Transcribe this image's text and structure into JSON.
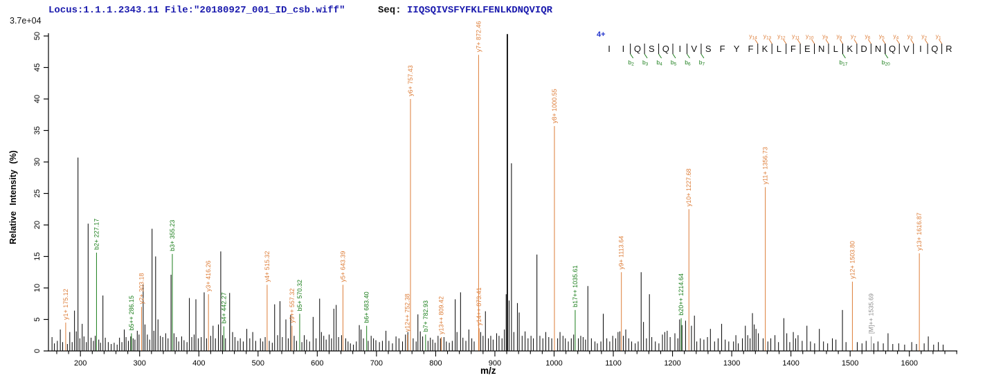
{
  "header": {
    "locus_file": "Locus:1.1.1.2343.11 File:\"20180927_001_ID_csb.wiff\"",
    "seq_label": "Seq: ",
    "sequence": "IIQSQIVSFYFKLFENLKDNQVIQR"
  },
  "axes": {
    "y": {
      "title": "Relative  Intensity (%)",
      "scale_note": "3.7e+04",
      "tick_values": [
        0,
        5,
        10,
        15,
        20,
        25,
        30,
        35,
        40,
        45,
        50
      ],
      "max": 50
    },
    "x": {
      "title": "m/z",
      "min": 146,
      "max": 1681,
      "major_ticks": [
        200,
        300,
        400,
        500,
        600,
        700,
        800,
        900,
        1000,
        1100,
        1200,
        1300,
        1400,
        1500,
        1600
      ],
      "minor_step": 20
    }
  },
  "colors": {
    "y_ion": "#dd7d38",
    "b_ion": "#1b7e1b",
    "precursor": "#909090",
    "peak": "#000000",
    "header_text": "#1a1aad",
    "charge": "#2233cc",
    "axis": "#000000"
  },
  "sequence_panel": {
    "charge_label": "4+",
    "residues": [
      "I",
      "I",
      "Q",
      "S",
      "Q",
      "I",
      "V",
      "S",
      "F",
      "Y",
      "F",
      "K",
      "L",
      "F",
      "E",
      "N",
      "L",
      "K",
      "D",
      "N",
      "Q",
      "V",
      "I",
      "Q",
      "R"
    ],
    "y_ion_marks": [
      14,
      13,
      12,
      11,
      10,
      9,
      8,
      7,
      6,
      5,
      4,
      3,
      2,
      1
    ],
    "b_ion_marks": [
      2,
      3,
      4,
      5,
      6,
      7,
      17,
      20
    ]
  },
  "chart_data": {
    "type": "bar",
    "title": "MS/MS fragment spectrum",
    "xlabel": "m/z",
    "ylabel": "Relative Intensity (%)",
    "xlim": [
      146,
      1681
    ],
    "ylim": [
      0,
      50
    ],
    "grid": false,
    "labeled_peaks": [
      {
        "label": "y1+ 175.12",
        "mz": 175.12,
        "intensity": 4.5,
        "type": "y"
      },
      {
        "label": "b2+ 227.17",
        "mz": 227.17,
        "intensity": 15.6,
        "type": "b"
      },
      {
        "label": "b5++ 286.15",
        "mz": 286.15,
        "intensity": 2.8,
        "type": "b"
      },
      {
        "label": "y2+ 303.18",
        "mz": 303.18,
        "intensity": 7.0,
        "type": "y"
      },
      {
        "label": "b3+ 355.23",
        "mz": 355.23,
        "intensity": 15.4,
        "type": "b"
      },
      {
        "label": "y3+ 416.26",
        "mz": 416.26,
        "intensity": 9.0,
        "type": "y"
      },
      {
        "label": "b4+ 442.27",
        "mz": 442.27,
        "intensity": 3.9,
        "type": "b"
      },
      {
        "label": "y4+ 515.32",
        "mz": 515.32,
        "intensity": 10.5,
        "type": "y"
      },
      {
        "label": "y9++ 557.32",
        "mz": 557.32,
        "intensity": 4.0,
        "type": "y"
      },
      {
        "label": "b5+ 570.32",
        "mz": 570.32,
        "intensity": 5.9,
        "type": "b"
      },
      {
        "label": "y5+ 643.39",
        "mz": 643.39,
        "intensity": 10.5,
        "type": "y"
      },
      {
        "label": "b6+ 683.40",
        "mz": 683.4,
        "intensity": 4.0,
        "type": "b"
      },
      {
        "label": "y12++ 752.38",
        "mz": 752.38,
        "intensity": 2.6,
        "type": "y"
      },
      {
        "label": "y6+ 757.43",
        "mz": 757.43,
        "intensity": 40.0,
        "type": "y"
      },
      {
        "label": "b7+ 782.93",
        "mz": 782.93,
        "intensity": 2.6,
        "type": "b"
      },
      {
        "label": "y13++ 809.42",
        "mz": 809.42,
        "intensity": 2.2,
        "type": "y"
      },
      {
        "label": "y7+ 872.46",
        "mz": 872.46,
        "intensity": 47.0,
        "type": "y"
      },
      {
        "label": "y14++ 873.41",
        "mz": 873.41,
        "intensity": 3.6,
        "type": "y"
      },
      {
        "label": "y8+ 1000.55",
        "mz": 1000.55,
        "intensity": 35.7,
        "type": "y"
      },
      {
        "label": "b17++ 1035.61",
        "mz": 1035.61,
        "intensity": 6.5,
        "type": "b"
      },
      {
        "label": "y9+ 1113.64",
        "mz": 1113.64,
        "intensity": 12.5,
        "type": "y"
      },
      {
        "label": "b20++ 1214.64",
        "mz": 1214.64,
        "intensity": 5.2,
        "type": "b"
      },
      {
        "label": "y10+ 1227.68",
        "mz": 1227.68,
        "intensity": 22.5,
        "type": "y"
      },
      {
        "label": "y11+ 1356.73",
        "mz": 1356.73,
        "intensity": 26.0,
        "type": "y"
      },
      {
        "label": "y12+ 1503.80",
        "mz": 1503.8,
        "intensity": 11.0,
        "type": "y"
      },
      {
        "label": "[M]++ 1535.69",
        "mz": 1535.69,
        "intensity": 2.3,
        "type": "M"
      },
      {
        "label": "y13+ 1616.87",
        "mz": 1616.87,
        "intensity": 15.5,
        "type": "y"
      }
    ],
    "unlabeled_peaks": [
      [
        152,
        2.2
      ],
      [
        156,
        1.2
      ],
      [
        161,
        1.6
      ],
      [
        166,
        3.4
      ],
      [
        170,
        1.4
      ],
      [
        178,
        1.1
      ],
      [
        182,
        3.0
      ],
      [
        186,
        1.4
      ],
      [
        190,
        6.4
      ],
      [
        193,
        3.1
      ],
      [
        195.9,
        30.7
      ],
      [
        199,
        2.0
      ],
      [
        203,
        4.3
      ],
      [
        206,
        2.3
      ],
      [
        210,
        1.4
      ],
      [
        213,
        20.2
      ],
      [
        218,
        2.1
      ],
      [
        222,
        1.6
      ],
      [
        225,
        2.4
      ],
      [
        231,
        1.8
      ],
      [
        234,
        1.3
      ],
      [
        238,
        8.8
      ],
      [
        242,
        2.1
      ],
      [
        247,
        1.4
      ],
      [
        252,
        1.1
      ],
      [
        257,
        1.3
      ],
      [
        262,
        1.0
      ],
      [
        266,
        2.1
      ],
      [
        270,
        1.4
      ],
      [
        274,
        3.4
      ],
      [
        277,
        2.2
      ],
      [
        281,
        1.6
      ],
      [
        285,
        2.3
      ],
      [
        289,
        2.0
      ],
      [
        292,
        1.8
      ],
      [
        296,
        3.2
      ],
      [
        299,
        2.6
      ],
      [
        306,
        10.5
      ],
      [
        309,
        4.2
      ],
      [
        313,
        2.6
      ],
      [
        317,
        1.8
      ],
      [
        321,
        19.4
      ],
      [
        324,
        3.2
      ],
      [
        327,
        15.0
      ],
      [
        331,
        5.0
      ],
      [
        335,
        2.4
      ],
      [
        339,
        2.2
      ],
      [
        344,
        2.8
      ],
      [
        348,
        2.0
      ],
      [
        353,
        12.1
      ],
      [
        358,
        2.8
      ],
      [
        362,
        2.2
      ],
      [
        366,
        1.5
      ],
      [
        371,
        2.3
      ],
      [
        375,
        1.7
      ],
      [
        380,
        1.4
      ],
      [
        384,
        8.4
      ],
      [
        388,
        2.2
      ],
      [
        392,
        2.6
      ],
      [
        395,
        8.2
      ],
      [
        399,
        2.0
      ],
      [
        404,
        2.2
      ],
      [
        409,
        9.3
      ],
      [
        413,
        2.0
      ],
      [
        420,
        2.4
      ],
      [
        424,
        4.0
      ],
      [
        428,
        2.0
      ],
      [
        433,
        4.2
      ],
      [
        437,
        15.8
      ],
      [
        440,
        2.5
      ],
      [
        445,
        2.0
      ],
      [
        452,
        9.2
      ],
      [
        457,
        3.0
      ],
      [
        461,
        2.2
      ],
      [
        466,
        1.6
      ],
      [
        470,
        2.0
      ],
      [
        475,
        1.5
      ],
      [
        481,
        3.5
      ],
      [
        486,
        2.0
      ],
      [
        491,
        3.0
      ],
      [
        496,
        1.6
      ],
      [
        504,
        2.0
      ],
      [
        508,
        1.5
      ],
      [
        512,
        2.2
      ],
      [
        519,
        1.6
      ],
      [
        524,
        1.3
      ],
      [
        528,
        7.4
      ],
      [
        533,
        2.5
      ],
      [
        537,
        7.9
      ],
      [
        541,
        2.2
      ],
      [
        547,
        5.0
      ],
      [
        551,
        2.0
      ],
      [
        555,
        5.7
      ],
      [
        561,
        2.4
      ],
      [
        565,
        1.6
      ],
      [
        574,
        1.4
      ],
      [
        578,
        2.5
      ],
      [
        582,
        1.8
      ],
      [
        587,
        1.5
      ],
      [
        593,
        5.4
      ],
      [
        598,
        2.0
      ],
      [
        604,
        8.3
      ],
      [
        607,
        3.0
      ],
      [
        611,
        2.4
      ],
      [
        615,
        1.8
      ],
      [
        620,
        2.6
      ],
      [
        624,
        2.0
      ],
      [
        628,
        6.7
      ],
      [
        632,
        7.3
      ],
      [
        636,
        2.2
      ],
      [
        641,
        2.5
      ],
      [
        648,
        2.0
      ],
      [
        652,
        1.5
      ],
      [
        656,
        1.2
      ],
      [
        661,
        1.0
      ],
      [
        666,
        1.5
      ],
      [
        671,
        4.1
      ],
      [
        674,
        3.4
      ],
      [
        678,
        2.0
      ],
      [
        686,
        1.6
      ],
      [
        691,
        2.4
      ],
      [
        695,
        2.0
      ],
      [
        699,
        1.7
      ],
      [
        705,
        1.4
      ],
      [
        710,
        1.6
      ],
      [
        716,
        3.2
      ],
      [
        721,
        1.6
      ],
      [
        727,
        1.2
      ],
      [
        733,
        2.3
      ],
      [
        738,
        2.0
      ],
      [
        744,
        1.5
      ],
      [
        749,
        2.6
      ],
      [
        753,
        3.0
      ],
      [
        762,
        2.0
      ],
      [
        767,
        1.5
      ],
      [
        770,
        5.8
      ],
      [
        774,
        3.1
      ],
      [
        778,
        2.3
      ],
      [
        787,
        1.6
      ],
      [
        791,
        2.1
      ],
      [
        795,
        1.8
      ],
      [
        799,
        1.3
      ],
      [
        804,
        2.4
      ],
      [
        808,
        2.0
      ],
      [
        814,
        2.2
      ],
      [
        818,
        1.5
      ],
      [
        823,
        1.3
      ],
      [
        828,
        1.6
      ],
      [
        833,
        8.2
      ],
      [
        836,
        3.0
      ],
      [
        842,
        9.3
      ],
      [
        846,
        2.1
      ],
      [
        851,
        1.6
      ],
      [
        856,
        3.4
      ],
      [
        861,
        2.0
      ],
      [
        865,
        1.5
      ],
      [
        876,
        3.0
      ],
      [
        880,
        2.4
      ],
      [
        884,
        6.3
      ],
      [
        889,
        2.0
      ],
      [
        893,
        2.4
      ],
      [
        897,
        1.8
      ],
      [
        903,
        2.8
      ],
      [
        907,
        2.4
      ],
      [
        912,
        2.0
      ],
      [
        916,
        3.4
      ],
      [
        919,
        9.0
      ],
      [
        921,
        50.3
      ],
      [
        924,
        8.0
      ],
      [
        928,
        29.8
      ],
      [
        932,
        3.0
      ],
      [
        938,
        7.6
      ],
      [
        941,
        6.1
      ],
      [
        946,
        2.4
      ],
      [
        951,
        3.1
      ],
      [
        956,
        2.0
      ],
      [
        961,
        2.4
      ],
      [
        965,
        2.0
      ],
      [
        971,
        15.3
      ],
      [
        976,
        2.4
      ],
      [
        981,
        2.0
      ],
      [
        986,
        3.0
      ],
      [
        991,
        2.2
      ],
      [
        996,
        2.0
      ],
      [
        1006,
        2.0
      ],
      [
        1010,
        3.0
      ],
      [
        1015,
        2.4
      ],
      [
        1019,
        2.0
      ],
      [
        1024,
        1.5
      ],
      [
        1029,
        2.0
      ],
      [
        1033,
        2.6
      ],
      [
        1041,
        2.0
      ],
      [
        1045,
        2.4
      ],
      [
        1049,
        2.2
      ],
      [
        1053,
        1.8
      ],
      [
        1057,
        10.3
      ],
      [
        1063,
        2.0
      ],
      [
        1069,
        1.5
      ],
      [
        1073,
        1.2
      ],
      [
        1079,
        1.5
      ],
      [
        1083,
        5.9
      ],
      [
        1089,
        2.0
      ],
      [
        1094,
        1.5
      ],
      [
        1099,
        2.4
      ],
      [
        1104,
        2.0
      ],
      [
        1108,
        3.0
      ],
      [
        1111,
        3.1
      ],
      [
        1117,
        2.4
      ],
      [
        1121,
        3.4
      ],
      [
        1126,
        2.0
      ],
      [
        1131,
        1.5
      ],
      [
        1137,
        1.2
      ],
      [
        1142,
        1.5
      ],
      [
        1147,
        12.5
      ],
      [
        1151,
        4.6
      ],
      [
        1156,
        2.0
      ],
      [
        1161,
        9.0
      ],
      [
        1165,
        2.2
      ],
      [
        1171,
        1.5
      ],
      [
        1177,
        1.2
      ],
      [
        1183,
        2.6
      ],
      [
        1187,
        3.0
      ],
      [
        1191,
        3.2
      ],
      [
        1196,
        2.2
      ],
      [
        1204,
        2.8
      ],
      [
        1209,
        2.0
      ],
      [
        1212,
        5.0
      ],
      [
        1216,
        4.1
      ],
      [
        1222,
        4.8
      ],
      [
        1232,
        4.0
      ],
      [
        1237,
        5.6
      ],
      [
        1241,
        1.5
      ],
      [
        1247,
        2.0
      ],
      [
        1253,
        1.8
      ],
      [
        1259,
        2.2
      ],
      [
        1264,
        3.5
      ],
      [
        1271,
        1.5
      ],
      [
        1277,
        2.0
      ],
      [
        1283,
        4.3
      ],
      [
        1289,
        1.8
      ],
      [
        1295,
        1.5
      ],
      [
        1303,
        1.5
      ],
      [
        1307,
        2.5
      ],
      [
        1311,
        1.2
      ],
      [
        1318,
        2.0
      ],
      [
        1323,
        4.0
      ],
      [
        1327,
        2.5
      ],
      [
        1331,
        2.0
      ],
      [
        1335,
        6.0
      ],
      [
        1338,
        4.2
      ],
      [
        1341,
        3.5
      ],
      [
        1345,
        2.8
      ],
      [
        1353,
        2.0
      ],
      [
        1361,
        1.5
      ],
      [
        1366,
        2.0
      ],
      [
        1373,
        2.5
      ],
      [
        1379,
        1.4
      ],
      [
        1388,
        5.2
      ],
      [
        1393,
        2.8
      ],
      [
        1398,
        1.4
      ],
      [
        1404,
        3.0
      ],
      [
        1408,
        2.0
      ],
      [
        1412,
        2.5
      ],
      [
        1419,
        1.6
      ],
      [
        1427,
        4.0
      ],
      [
        1433,
        1.5
      ],
      [
        1440,
        1.2
      ],
      [
        1448,
        3.5
      ],
      [
        1455,
        1.5
      ],
      [
        1462,
        1.2
      ],
      [
        1470,
        2.0
      ],
      [
        1476,
        1.8
      ],
      [
        1487,
        6.5
      ],
      [
        1493,
        1.4
      ],
      [
        1512,
        1.4
      ],
      [
        1520,
        1.2
      ],
      [
        1527,
        1.6
      ],
      [
        1540,
        1.2
      ],
      [
        1547,
        1.5
      ],
      [
        1556,
        1.2
      ],
      [
        1564,
        2.8
      ],
      [
        1572,
        1.1
      ],
      [
        1582,
        1.2
      ],
      [
        1592,
        1.0
      ],
      [
        1604,
        1.4
      ],
      [
        1612,
        1.1
      ],
      [
        1625,
        1.2
      ],
      [
        1632,
        2.3
      ],
      [
        1641,
        1.0
      ],
      [
        1649,
        1.4
      ],
      [
        1657,
        1.0
      ]
    ]
  }
}
